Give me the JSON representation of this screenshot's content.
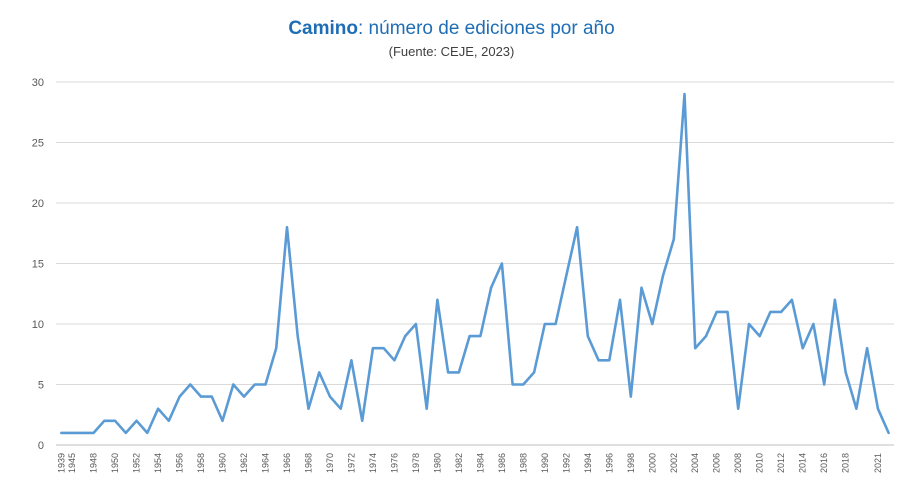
{
  "title": {
    "strong": "Camino",
    "rest": ": número de ediciones por año"
  },
  "subtitle": "(Fuente: CEJE, 2023)",
  "colors": {
    "line": "#5b9bd5",
    "title": "#1f6eb5",
    "grid": "#d9d9d9"
  },
  "chart_data": {
    "type": "line",
    "title": "Camino: número de ediciones por año",
    "subtitle": "(Fuente: CEJE, 2023)",
    "xlabel": "",
    "ylabel": "",
    "ylim": [
      0,
      30
    ],
    "yticks": [
      0,
      5,
      10,
      15,
      20,
      25,
      30
    ],
    "grid": true,
    "legend": "none",
    "x": [
      "1939",
      "1945",
      "1947",
      "1948",
      "1949",
      "1950",
      "1951",
      "1952",
      "1953",
      "1954",
      "1955",
      "1956",
      "1957",
      "1958",
      "1959",
      "1960",
      "1961",
      "1962",
      "1963",
      "1964",
      "1965",
      "1966",
      "1967",
      "1968",
      "1969",
      "1970",
      "1971",
      "1972",
      "1973",
      "1974",
      "1975",
      "1976",
      "1977",
      "1978",
      "1979",
      "1980",
      "1981",
      "1982",
      "1983",
      "1984",
      "1985",
      "1986",
      "1987",
      "1988",
      "1989",
      "1990",
      "1991",
      "1992",
      "1993",
      "1994",
      "1995",
      "1996",
      "1997",
      "1998",
      "1999",
      "2000",
      "2001",
      "2002",
      "2003",
      "2004",
      "2005",
      "2006",
      "2007",
      "2008",
      "2009",
      "2010",
      "2011",
      "2012",
      "2013",
      "2014",
      "2015",
      "2016",
      "2017",
      "2018",
      "2019",
      "2020",
      "2021",
      "2022"
    ],
    "x_tick_labels": [
      "1939",
      "1945",
      "1948",
      "1950",
      "1952",
      "1954",
      "1956",
      "1958",
      "1960",
      "1962",
      "1964",
      "1966",
      "1968",
      "1970",
      "1972",
      "1974",
      "1976",
      "1978",
      "1980",
      "1982",
      "1984",
      "1986",
      "1988",
      "1990",
      "1992",
      "1994",
      "1996",
      "1998",
      "2000",
      "2002",
      "2004",
      "2006",
      "2008",
      "2010",
      "2012",
      "2014",
      "2016",
      "2018",
      "2021"
    ],
    "series": [
      {
        "name": "Ediciones",
        "values": [
          1,
          1,
          1,
          1,
          2,
          2,
          1,
          2,
          1,
          3,
          2,
          4,
          5,
          4,
          4,
          2,
          5,
          4,
          5,
          5,
          8,
          18,
          9,
          3,
          6,
          4,
          3,
          7,
          2,
          8,
          8,
          7,
          9,
          10,
          3,
          12,
          6,
          6,
          9,
          9,
          13,
          15,
          5,
          5,
          6,
          10,
          10,
          14,
          18,
          9,
          7,
          7,
          12,
          4,
          13,
          10,
          14,
          17,
          29,
          8,
          9,
          11,
          11,
          3,
          10,
          9,
          11,
          11,
          12,
          8,
          10,
          5,
          12,
          6,
          3,
          8,
          3,
          1
        ]
      }
    ]
  }
}
